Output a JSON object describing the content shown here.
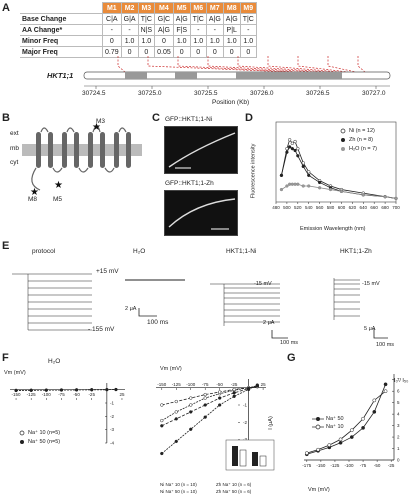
{
  "panels": [
    "A",
    "B",
    "C",
    "D",
    "E",
    "F",
    "G"
  ],
  "table": {
    "headers": [
      "M1",
      "M2",
      "M3",
      "M4",
      "M5",
      "M6",
      "M7",
      "M8",
      "M9"
    ],
    "rows": [
      {
        "label": "Base Change",
        "cells": [
          "C|A",
          "G|A",
          "T|C",
          "G|C",
          "A|G",
          "T|C",
          "A|G",
          "A|G",
          "T|C"
        ]
      },
      {
        "label": "AA Change*",
        "cells": [
          "-",
          "-",
          "N|S",
          "A|G",
          "F|S",
          "-",
          "-",
          "P|L",
          "-"
        ]
      },
      {
        "label": "Minor Freq",
        "cells": [
          "0",
          "1.0",
          "1.0",
          "0",
          "1.0",
          "1.0",
          "1.0",
          "1.0",
          "1.0"
        ]
      },
      {
        "label": "Major Freq",
        "cells": [
          "0.79",
          "0",
          "0",
          "0.05",
          "0",
          "0",
          "0",
          "0",
          "0"
        ]
      }
    ]
  },
  "gene": {
    "name": "HKT1;1",
    "ticks": [
      "30724.5",
      "30725.0",
      "30725.5",
      "30726.0",
      "30726.5",
      "30727.0"
    ],
    "xlabel": "Position (Kb)"
  },
  "panelB": {
    "labels": {
      "ext": "ext",
      "mb": "mb",
      "cyt": "cyt",
      "m3": "M3",
      "m8": "M8",
      "m5": "M5"
    }
  },
  "panelC": {
    "top": "GFP::HKT1;1-Ni",
    "bottom": "GFP::HKT1;1-Zh"
  },
  "panelD": {
    "ylabel": "Fluorescence intensity",
    "xlabel": "Emission Wavelength (nm)",
    "xticks": [
      "480",
      "500",
      "520",
      "540",
      "560",
      "580",
      "600",
      "620",
      "640",
      "660",
      "680",
      "700"
    ],
    "legend": [
      "Ni (n = 12)",
      "Zh (n = 8)",
      "H₂O (n = 7)"
    ]
  },
  "panelE": {
    "titles": [
      "protocol",
      "H₂O",
      "HKT1;1-Ni",
      "HKT1;1-Zh"
    ],
    "v_top": "+15 mV",
    "v_bot": "- 155 mV",
    "v_ni": "-15 mV",
    "v_zh": "-15 mV",
    "scale_h2o_y": "2 μA",
    "scale_h2o_x": "100 ms",
    "scale_ni_y": "2 μA",
    "scale_ni_x": "100 ms",
    "scale_zh_y": "5 μA",
    "scale_zh_x": "100 ms"
  },
  "panelF": {
    "title_left": "H₂O",
    "vm_label": "Vm (mV)",
    "ilabel": "I (μA)",
    "xticks_left": [
      "-150",
      "-125",
      "-100",
      "-75",
      "-50",
      "-25",
      "25"
    ],
    "xticks_right": [
      "-150",
      "-125",
      "-100",
      "-75",
      "-50",
      "-25",
      "25"
    ],
    "yticks": [
      "-1",
      "-2",
      "-3",
      "-4"
    ],
    "legend_left": [
      "Na⁺ 10 (n=5)",
      "Na⁺ 50 (n=5)"
    ],
    "legend_right": [
      "Ni Na⁺ 10 (n = 10)",
      "Ni Na⁺ 50 (n = 10)",
      "Zh Na⁺ 10 (n = 6)",
      "Zh Na⁺ 50 (n = 6)"
    ]
  },
  "panelG": {
    "ylabel": "I₀ / I₅₀",
    "xlabel": "Vm (mV)",
    "xticks": [
      "-175",
      "-150",
      "-125",
      "-100",
      "-75",
      "-50",
      "-25"
    ],
    "yticks": [
      "0",
      "1",
      "2",
      "3",
      "4",
      "5",
      "6",
      "7"
    ],
    "legend": [
      "Na⁺ 50",
      "Na⁺ 10"
    ]
  },
  "colors": {
    "orange": "#e98b3a",
    "red": "#cc2a2a",
    "gray": "#888888",
    "black": "#111111"
  },
  "chart_data": [
    {
      "type": "line",
      "title": "",
      "xlabel": "Emission Wavelength (nm)",
      "ylabel": "Fluorescence intensity",
      "xlim": [
        480,
        700
      ],
      "series": [
        {
          "name": "Ni (n = 12)",
          "x": [
            490,
            500,
            505,
            510,
            515,
            520,
            530,
            540,
            560,
            580,
            600,
            640,
            680,
            700
          ],
          "values": [
            15,
            30,
            35,
            33,
            34,
            30,
            22,
            17,
            12,
            9,
            7,
            5,
            3,
            2
          ]
        },
        {
          "name": "Zh (n = 8)",
          "x": [
            490,
            500,
            505,
            510,
            515,
            520,
            530,
            540,
            560,
            580,
            600,
            640,
            680,
            700
          ],
          "values": [
            15,
            28,
            31,
            30,
            29,
            26,
            20,
            15,
            11,
            8,
            6,
            4,
            3,
            2
          ]
        },
        {
          "name": "H₂O (n = 7)",
          "x": [
            490,
            500,
            505,
            510,
            515,
            520,
            530,
            540,
            560,
            580,
            600,
            640,
            680,
            700
          ],
          "values": [
            7,
            9,
            10,
            10,
            10,
            10,
            9,
            9,
            8,
            7,
            6,
            4,
            3,
            2
          ]
        }
      ]
    },
    {
      "type": "line",
      "title": "",
      "xlabel": "Vm (mV)",
      "ylabel": "I (μA)",
      "series": [
        {
          "name": "Na⁺ 10 (n=5)",
          "x": [
            -150,
            -125,
            -100,
            -75,
            -50,
            -25,
            0,
            15
          ],
          "values": [
            -0.05,
            -0.04,
            -0.03,
            -0.02,
            -0.01,
            0,
            0,
            0.01
          ]
        },
        {
          "name": "Na⁺ 50 (n=5)",
          "x": [
            -150,
            -125,
            -100,
            -75,
            -50,
            -25,
            0,
            15
          ],
          "values": [
            -0.06,
            -0.05,
            -0.04,
            -0.03,
            -0.02,
            -0.01,
            0,
            0.01
          ]
        }
      ]
    },
    {
      "type": "line",
      "title": "",
      "xlabel": "Vm (mV)",
      "ylabel": "I (μA)",
      "series": [
        {
          "name": "Ni Na⁺ 10 (n = 10)",
          "x": [
            -150,
            -125,
            -100,
            -75,
            -50,
            -25,
            0,
            15
          ],
          "values": [
            -1.9,
            -1.4,
            -1.0,
            -0.6,
            -0.35,
            -0.15,
            0,
            0.1
          ]
        },
        {
          "name": "Ni Na⁺ 50 (n = 10)",
          "x": [
            -150,
            -125,
            -100,
            -75,
            -50,
            -25,
            0,
            15
          ],
          "values": [
            -3.8,
            -3.1,
            -2.4,
            -1.7,
            -1.0,
            -0.5,
            -0.1,
            0.15
          ]
        },
        {
          "name": "Zh Na⁺ 10 (n = 6)",
          "x": [
            -150,
            -125,
            -100,
            -75,
            -50,
            -25,
            0,
            15
          ],
          "values": [
            -1.0,
            -0.8,
            -0.6,
            -0.4,
            -0.25,
            -0.1,
            0,
            0.05
          ]
        },
        {
          "name": "Zh Na⁺ 50 (n = 6)",
          "x": [
            -150,
            -125,
            -100,
            -75,
            -50,
            -25,
            0,
            15
          ],
          "values": [
            -2.2,
            -1.8,
            -1.4,
            -1.0,
            -0.6,
            -0.3,
            -0.05,
            0.1
          ]
        }
      ]
    },
    {
      "type": "line",
      "title": "",
      "xlabel": "Vm (mV)",
      "ylabel": "I₀ / I₅₀",
      "xlim": [
        -175,
        -25
      ],
      "ylim": [
        0,
        7
      ],
      "series": [
        {
          "name": "Na⁺ 50",
          "x": [
            -175,
            -155,
            -135,
            -115,
            -95,
            -75,
            -55,
            -35
          ],
          "values": [
            0.5,
            0.8,
            1.1,
            1.5,
            2.0,
            2.8,
            4.2,
            6.6
          ]
        },
        {
          "name": "Na⁺ 10",
          "x": [
            -175,
            -155,
            -135,
            -115,
            -95,
            -75,
            -55,
            -35
          ],
          "values": [
            0.6,
            0.9,
            1.3,
            1.8,
            2.6,
            3.6,
            5.2,
            6.0
          ]
        }
      ]
    }
  ]
}
